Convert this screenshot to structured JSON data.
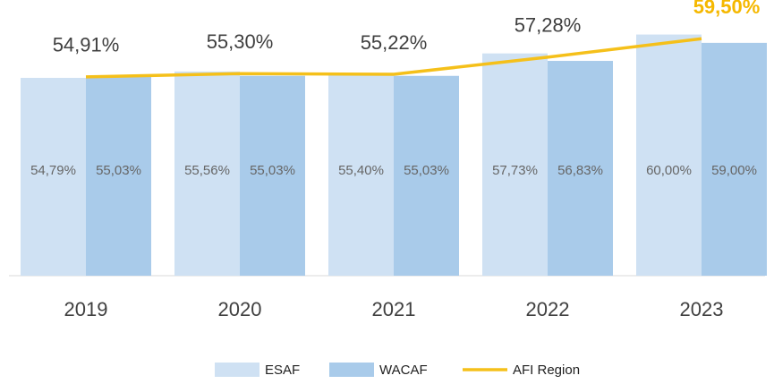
{
  "chart_data": {
    "type": "bar",
    "categories": [
      "2019",
      "2020",
      "2021",
      "2022",
      "2023"
    ],
    "ylim": [
      31,
      62
    ],
    "series": [
      {
        "name": "ESAF",
        "type": "bar",
        "color": "#cfe1f3",
        "values": [
          54.79,
          55.56,
          55.4,
          57.73,
          60.0
        ],
        "value_labels": [
          "54,79%",
          "55,56%",
          "55,40%",
          "57,73%",
          "60,00%"
        ]
      },
      {
        "name": "WACAF",
        "type": "bar",
        "color": "#a9cbea",
        "values": [
          55.03,
          55.03,
          55.03,
          56.83,
          59.0
        ],
        "value_labels": [
          "55,03%",
          "55,03%",
          "55,03%",
          "56,83%",
          "59,00%"
        ]
      },
      {
        "name": "AFI Region",
        "type": "line",
        "color": "#f5c01a",
        "values": [
          54.91,
          55.3,
          55.22,
          57.28,
          59.5
        ],
        "value_labels": [
          "54,91%",
          "55,30%",
          "55,22%",
          "57,28%",
          "59,50%"
        ]
      }
    ],
    "legend": "bottom"
  }
}
